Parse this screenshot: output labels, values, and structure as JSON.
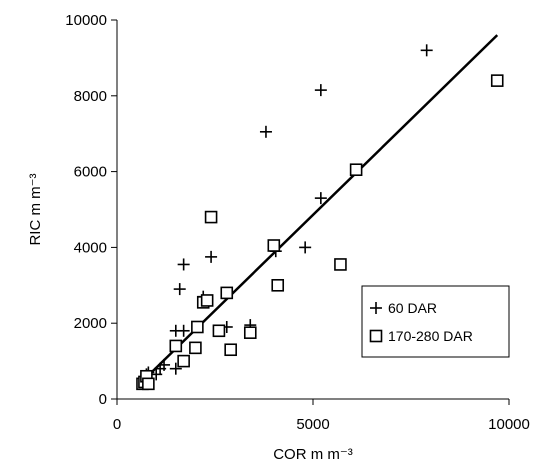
{
  "chart_data": {
    "type": "scatter",
    "xlabel": "COR m m⁻³",
    "ylabel": "RIC m m⁻³",
    "xlim": [
      0,
      10000
    ],
    "ylim": [
      0,
      10000
    ],
    "xticks": [
      0,
      5000,
      10000
    ],
    "yticks": [
      0,
      2000,
      4000,
      6000,
      8000,
      10000
    ],
    "grid": false,
    "legend_position": "lower-right",
    "series": [
      {
        "name": "60 DAR",
        "marker": "plus",
        "points": [
          [
            700,
            500
          ],
          [
            750,
            650
          ],
          [
            800,
            700
          ],
          [
            1000,
            650
          ],
          [
            1100,
            800
          ],
          [
            1200,
            900
          ],
          [
            1500,
            800
          ],
          [
            1500,
            1800
          ],
          [
            1600,
            2900
          ],
          [
            1700,
            3550
          ],
          [
            1700,
            1800
          ],
          [
            2200,
            2700
          ],
          [
            2400,
            3750
          ],
          [
            2600,
            1800
          ],
          [
            2800,
            1900
          ],
          [
            3400,
            1950
          ],
          [
            3800,
            7050
          ],
          [
            4050,
            3900
          ],
          [
            4800,
            4000
          ],
          [
            5200,
            8150
          ],
          [
            5200,
            5300
          ],
          [
            7900,
            9200
          ]
        ]
      },
      {
        "name": "170-280 DAR",
        "marker": "square",
        "points": [
          [
            650,
            400
          ],
          [
            700,
            450
          ],
          [
            750,
            600
          ],
          [
            800,
            400
          ],
          [
            1500,
            1400
          ],
          [
            1700,
            1000
          ],
          [
            2000,
            1350
          ],
          [
            2050,
            1900
          ],
          [
            2200,
            2550
          ],
          [
            2300,
            2600
          ],
          [
            2400,
            4800
          ],
          [
            2600,
            1800
          ],
          [
            2800,
            2800
          ],
          [
            2900,
            1300
          ],
          [
            3400,
            1750
          ],
          [
            4000,
            4050
          ],
          [
            4100,
            3000
          ],
          [
            5700,
            3550
          ],
          [
            6100,
            6050
          ],
          [
            9700,
            8400
          ]
        ]
      }
    ],
    "trendline": {
      "x": [
        700,
        9700
      ],
      "y": [
        520,
        9600
      ]
    }
  }
}
